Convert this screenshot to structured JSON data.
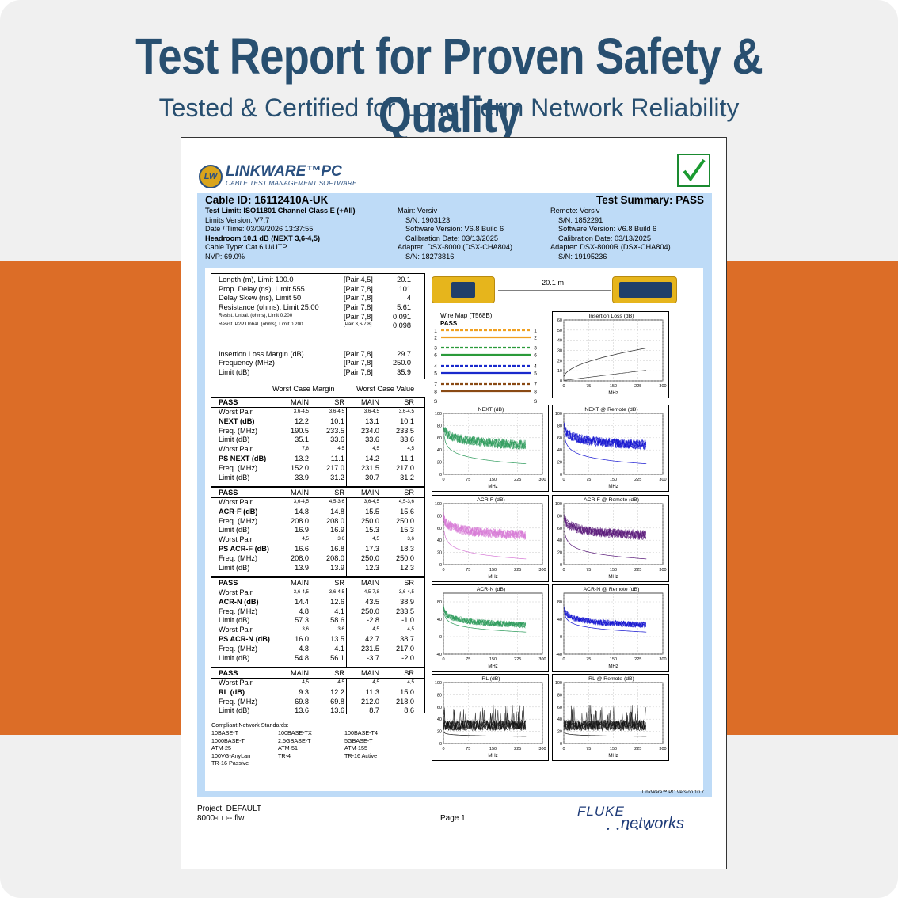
{
  "headline": "Test Report for Proven Safety & Quality",
  "subline": "Tested & Certified for Long-Term Network Reliability",
  "logo": {
    "badge": "LW",
    "name": "LINKWARE™PC",
    "tag": "CABLE TEST MANAGEMENT SOFTWARE"
  },
  "colors": {
    "band": "#dc6d27",
    "headline": "#284f70",
    "panel": "#bedbf7",
    "next": "#2e9b5c",
    "acr_f": "#d77ad6",
    "acr_f_remote": "#5a1a7a",
    "next_remote": "#1515d0",
    "rl": "#111111"
  },
  "summary": {
    "cable_id": "Cable ID: 16112410A-UK",
    "result": "Test Summary: PASS",
    "left": [
      "Test Limit: ISO11801 Channel Class E (+All)",
      "Limits Version: V7.7",
      "Date / Time: 03/09/2026  13:37:55",
      "Headroom 10.1 dB (NEXT 3,6-4,5)",
      "Cable Type: Cat 6 U/UTP",
      "NVP: 69.0%"
    ],
    "main": [
      "Main: Versiv",
      "S/N: 1903123",
      "Software Version: V6.8 Build 6",
      "Calibration Date: 03/13/2025",
      "Adapter: DSX-8000 (DSX-CHA804)",
      "S/N: 18273816"
    ],
    "remote": [
      "Remote: Versiv",
      "S/N: 1852291",
      "Software Version: V6.8 Build 6",
      "Calibration Date: 03/13/2025",
      "Adapter: DSX-8000R (DSX-CHA804)",
      "S/N: 19195236"
    ]
  },
  "measurements": [
    {
      "label": "Length (m), Limit 100.0",
      "pair": "[Pair 4,5]",
      "value": "20.1"
    },
    {
      "label": "Prop. Delay (ns), Limit 555",
      "pair": "[Pair 7,8]",
      "value": "101"
    },
    {
      "label": "Delay Skew (ns), Limit 50",
      "pair": "[Pair 7,8]",
      "value": "4"
    },
    {
      "label": "Resistance (ohms), Limit 25.00",
      "pair": "[Pair 7,8]",
      "value": "5.61"
    },
    {
      "label": "Resist. Unbal. (ohms), Limit 0.200",
      "pair": "[Pair 7,8]",
      "value": "0.091"
    },
    {
      "label": "Resist. P2P Unbal. (ohms), Limit 0.200",
      "pair": "[Pair 3,6-7,8]",
      "value": "0.098"
    },
    {
      "label": "Insertion Loss Margin (dB)",
      "pair": "[Pair 7,8]",
      "value": "29.7"
    },
    {
      "label": "Frequency (MHz)",
      "pair": "[Pair 7,8]",
      "value": "250.0"
    },
    {
      "label": "Limit (dB)",
      "pair": "[Pair 7,8]",
      "value": "35.9"
    }
  ],
  "margin_headers": {
    "margin": "Worst Case Margin",
    "value": "Worst Case Value"
  },
  "tables": [
    {
      "pass": "PASS",
      "cols": [
        "MAIN",
        "SR",
        "MAIN",
        "SR"
      ],
      "rows": [
        [
          "Worst Pair",
          "3,6-4,5",
          "3,6-4,5",
          "3,6-4,5",
          "3,6-4,5"
        ],
        [
          "NEXT (dB)",
          "12.2",
          "10.1",
          "13.1",
          "10.1"
        ],
        [
          "Freq. (MHz)",
          "190.5",
          "233.5",
          "234.0",
          "233.5"
        ],
        [
          "Limit (dB)",
          "35.1",
          "33.6",
          "33.6",
          "33.6"
        ],
        [
          "Worst Pair",
          "7,8",
          "4,5",
          "4,5",
          "4,5"
        ],
        [
          "PS NEXT (dB)",
          "13.2",
          "11.1",
          "14.2",
          "11.1"
        ],
        [
          "Freq. (MHz)",
          "152.0",
          "217.0",
          "231.5",
          "217.0"
        ],
        [
          "Limit (dB)",
          "33.9",
          "31.2",
          "30.7",
          "31.2"
        ]
      ]
    },
    {
      "pass": "PASS",
      "cols": [
        "MAIN",
        "SR",
        "MAIN",
        "SR"
      ],
      "rows": [
        [
          "Worst Pair",
          "3,6-4,5",
          "4,5-3,6",
          "3,6-4,5",
          "4,5-3,6"
        ],
        [
          "ACR-F (dB)",
          "14.8",
          "14.8",
          "15.5",
          "15.6"
        ],
        [
          "Freq. (MHz)",
          "208.0",
          "208.0",
          "250.0",
          "250.0"
        ],
        [
          "Limit (dB)",
          "16.9",
          "16.9",
          "15.3",
          "15.3"
        ],
        [
          "Worst Pair",
          "4,5",
          "3,6",
          "4,5",
          "3,6"
        ],
        [
          "PS ACR-F (dB)",
          "16.6",
          "16.8",
          "17.3",
          "18.3"
        ],
        [
          "Freq. (MHz)",
          "208.0",
          "208.0",
          "250.0",
          "250.0"
        ],
        [
          "Limit (dB)",
          "13.9",
          "13.9",
          "12.3",
          "12.3"
        ]
      ]
    },
    {
      "pass": "PASS",
      "cols": [
        "MAIN",
        "SR",
        "MAIN",
        "SR"
      ],
      "rows": [
        [
          "Worst Pair",
          "3,6-4,5",
          "3,6-4,5",
          "4,5-7,8",
          "3,6-4,5"
        ],
        [
          "ACR-N (dB)",
          "14.4",
          "12.6",
          "43.5",
          "38.9"
        ],
        [
          "Freq. (MHz)",
          "4.8",
          "4.1",
          "250.0",
          "233.5"
        ],
        [
          "Limit (dB)",
          "57.3",
          "58.6",
          "-2.8",
          "-1.0"
        ],
        [
          "Worst Pair",
          "3,6",
          "3,6",
          "4,5",
          "4,5"
        ],
        [
          "PS ACR-N (dB)",
          "16.0",
          "13.5",
          "42.7",
          "38.7"
        ],
        [
          "Freq. (MHz)",
          "4.8",
          "4.1",
          "231.5",
          "217.0"
        ],
        [
          "Limit (dB)",
          "54.8",
          "56.1",
          "-3.7",
          "-2.0"
        ]
      ]
    },
    {
      "pass": "PASS",
      "cols": [
        "MAIN",
        "SR",
        "MAIN",
        "SR"
      ],
      "rows": [
        [
          "Worst Pair",
          "4,5",
          "4,5",
          "4,5",
          "4,5"
        ],
        [
          "RL (dB)",
          "9.3",
          "12.2",
          "11.3",
          "15.0"
        ],
        [
          "Freq. (MHz)",
          "69.8",
          "69.8",
          "212.0",
          "218.0"
        ],
        [
          "Limit (dB)",
          "13.6",
          "13.6",
          "8.7",
          "8.6"
        ]
      ]
    }
  ],
  "standards": {
    "title": "Compliant Network Standards:",
    "items": [
      "10BASE-T",
      "100BASE-TX",
      "100BASE-T4",
      "1000BASE-T",
      "2.5GBASE-T",
      "5GBASE-T",
      "ATM-25",
      "ATM-51",
      "ATM-155",
      "100VG-AnyLan",
      "TR-4",
      "TR-16 Active",
      "TR-16 Passive"
    ]
  },
  "link": {
    "length": "20.1 m"
  },
  "wiremap": {
    "title": "Wire Map (T568B)",
    "result": "PASS",
    "pins": [
      "1",
      "2",
      "3",
      "6",
      "4",
      "5",
      "7",
      "8"
    ],
    "s": "S"
  },
  "version": "LinkWare™ PC Version 10.7",
  "footer": {
    "project": "Project: DEFAULT",
    "file": "8000-□□--.flw",
    "page": "Page 1",
    "brand1": "FLUKE",
    "brand2": "networks"
  },
  "chart_data": [
    {
      "type": "line",
      "title": "Insertion Loss (dB)",
      "xlabel": "MHz",
      "x_ticks": [
        "0",
        "75",
        "150",
        "225",
        "300"
      ],
      "y_ticks": [
        "0",
        "10",
        "20",
        "30",
        "40",
        "50",
        "60"
      ],
      "ylim": [
        0,
        60
      ],
      "series": [
        {
          "values": "measured rising to ~32 dB at 250 MHz"
        },
        {
          "values": "limit curve"
        }
      ]
    },
    {
      "type": "line",
      "title": "NEXT (dB)",
      "xlabel": "MHz",
      "x_ticks": [
        "0",
        "75",
        "150",
        "225",
        "300"
      ],
      "y_ticks": [
        "0",
        "20",
        "40",
        "60",
        "80",
        "100"
      ],
      "ylim": [
        0,
        100
      ]
    },
    {
      "type": "line",
      "title": "NEXT @ Remote (dB)",
      "xlabel": "MHz",
      "x_ticks": [
        "0",
        "75",
        "150",
        "225",
        "300"
      ],
      "y_ticks": [
        "0",
        "20",
        "40",
        "60",
        "80",
        "100"
      ],
      "ylim": [
        0,
        100
      ]
    },
    {
      "type": "line",
      "title": "ACR-F (dB)",
      "xlabel": "MHz",
      "x_ticks": [
        "0",
        "75",
        "150",
        "225",
        "300"
      ],
      "y_ticks": [
        "0",
        "20",
        "40",
        "60",
        "80",
        "100"
      ],
      "ylim": [
        0,
        100
      ]
    },
    {
      "type": "line",
      "title": "ACR-F @ Remote (dB)",
      "xlabel": "MHz",
      "x_ticks": [
        "0",
        "75",
        "150",
        "225",
        "300"
      ],
      "y_ticks": [
        "0",
        "20",
        "40",
        "60",
        "80",
        "100"
      ],
      "ylim": [
        0,
        100
      ]
    },
    {
      "type": "line",
      "title": "ACR-N (dB)",
      "xlabel": "MHz",
      "x_ticks": [
        "0",
        "75",
        "150",
        "225",
        "300"
      ],
      "y_ticks": [
        "-40",
        "0",
        "40",
        "80"
      ],
      "ylim": [
        -40,
        100
      ]
    },
    {
      "type": "line",
      "title": "ACR-N @ Remote (dB)",
      "xlabel": "MHz",
      "x_ticks": [
        "0",
        "75",
        "150",
        "225",
        "300"
      ],
      "y_ticks": [
        "-40",
        "0",
        "40",
        "80"
      ],
      "ylim": [
        -40,
        100
      ]
    },
    {
      "type": "line",
      "title": "RL (dB)",
      "xlabel": "MHz",
      "x_ticks": [
        "0",
        "75",
        "150",
        "225",
        "300"
      ],
      "y_ticks": [
        "0",
        "20",
        "40",
        "60",
        "80",
        "100"
      ],
      "ylim": [
        0,
        100
      ]
    },
    {
      "type": "line",
      "title": "RL @ Remote (dB)",
      "xlabel": "MHz",
      "x_ticks": [
        "0",
        "75",
        "150",
        "225",
        "300"
      ],
      "y_ticks": [
        "0",
        "20",
        "40",
        "60",
        "80",
        "100"
      ],
      "ylim": [
        0,
        100
      ]
    }
  ]
}
